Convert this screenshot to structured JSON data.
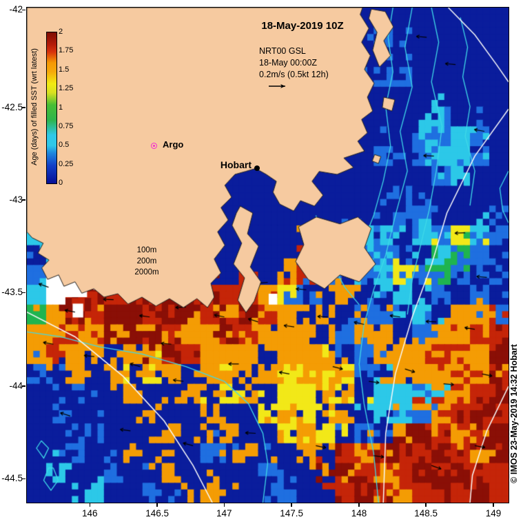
{
  "title": "18-May-2019 10Z",
  "legend": {
    "product": "NRT00 GSL",
    "datetime": "18-May 00:00Z",
    "scale": "0.2m/s (0.5kt 12h)"
  },
  "markers": {
    "argo": "Argo",
    "hobart": "Hobart"
  },
  "contour_labels": {
    "l1": "100m",
    "l2": "200m",
    "l3": "2000m"
  },
  "credit": "© IMOS 23-May-2019 14:32 Hobart",
  "colorbar": {
    "label": "Age (days) of filled SST (wrt latest)",
    "ticks": [
      "2",
      "1.75",
      "1.5",
      "1.25",
      "1",
      "0.75",
      "0.5",
      "0.25",
      "0"
    ],
    "stops": [
      [
        0,
        "#060f96"
      ],
      [
        0.12,
        "#1240c8"
      ],
      [
        0.2,
        "#1e86de"
      ],
      [
        0.25,
        "#2fc8e8"
      ],
      [
        0.32,
        "#2fc8e8"
      ],
      [
        0.42,
        "#2eb44c"
      ],
      [
        0.52,
        "#49be34"
      ],
      [
        0.6,
        "#d8e020"
      ],
      [
        0.66,
        "#f2ea12"
      ],
      [
        0.74,
        "#f6a90a"
      ],
      [
        0.8,
        "#f59804"
      ],
      [
        0.87,
        "#d8330c"
      ],
      [
        0.92,
        "#b51b08"
      ],
      [
        1,
        "#7e0d04"
      ]
    ]
  },
  "axes": {
    "x": [
      {
        "label": "146",
        "f": 0.132
      },
      {
        "label": "146.5",
        "f": 0.272
      },
      {
        "label": "147",
        "f": 0.411
      },
      {
        "label": "147.5",
        "f": 0.551
      },
      {
        "label": "148",
        "f": 0.691
      },
      {
        "label": "148.5",
        "f": 0.83
      },
      {
        "label": "149",
        "f": 0.97
      }
    ],
    "y": [
      {
        "label": "-42",
        "f": 0.006
      },
      {
        "label": "-42.5",
        "f": 0.203
      },
      {
        "label": "-43",
        "f": 0.39
      },
      {
        "label": "-43.5",
        "f": 0.577
      },
      {
        "label": "-44",
        "f": 0.766
      },
      {
        "label": "-44.5",
        "f": 0.953
      }
    ]
  },
  "map": {
    "seed": 20190518,
    "palette": {
      "N": "#0a1d9c",
      "B": "#1f6fe0",
      "C": "#2cc8e8",
      "G": "#1fb450",
      "Y": "#f2e818",
      "O": "#f49c04",
      "R": "#c52508",
      "D": "#8a0f06",
      "W": "#ffffff"
    },
    "land_color": "#f6caa0",
    "coast_color": "#222222",
    "contour_cyan_color": "#3fd9e8",
    "contour_white_color": "#fafafa",
    "arrow_color": "#000000",
    "grid": [
      "NNNNNNNNNNNNNNNNNNNNNNNNN",
      "NNNNNNNNNNNNNNNNNNBNNNNNN",
      "NNNNNNNNNNNNNNNNNNNNNNNNN",
      "NNNNNNNNNNNNNNNNNNBBNNNNN",
      "NNNNNNNNNNNNNNNNNNNNNNNNN",
      "NNNNNNNNNNNNNNNNNNNNNCNNN",
      "NNNNNNNNNNNNNNNNNNNNCBCBN",
      "NNNNNNNNNNNNNNNNNNBNBCCBN",
      "NNNNNNNNNNNNNNNNNNNNNBCNN",
      "NNNNNNNNNNNNNNNNNNNBNNNNN",
      "NNNNNNNNNNNNNNNNNNNBBNNNN",
      "CBNNNNNNNNNNNNNOBCBNCBYCB",
      "NCWWNNNNNNNNNNNYCBCBNCGBN",
      "BWWRDNNNNNNNNORBNBCYBGBNB",
      "CWRDRRDDRDRROYBNONNCNBNBN",
      "GODRDDRDDRODRONONBBNCNOOB",
      "OOROODDROODROOONBOONBOORR",
      "OROONOODROOONOOONBOOOROOD",
      "BNONONYONOONOYOYOBNOOOROR",
      "NNBNNONNONYONYYOYNCCCRORD",
      "NBNNNNONNONNYOYNONCCBORDR",
      "NNNBNNNONNONNYOYNBNODRORD",
      "NNBNNONNNBNONNONRORDRDROD",
      "NCNNBNNONNNNBNNODRORDRDRR",
      "NNNCNNBNNONNNBNNRDRORDRDR"
    ],
    "land": [
      [
        [
          0,
          0
        ],
        [
          0.697,
          0
        ],
        [
          0.692,
          0.014
        ],
        [
          0.71,
          0.042
        ],
        [
          0.695,
          0.07
        ],
        [
          0.713,
          0.097
        ],
        [
          0.701,
          0.125
        ],
        [
          0.721,
          0.153
        ],
        [
          0.707,
          0.181
        ],
        [
          0.718,
          0.209
        ],
        [
          0.695,
          0.226
        ],
        [
          0.707,
          0.253
        ],
        [
          0.687,
          0.27
        ],
        [
          0.701,
          0.29
        ],
        [
          0.658,
          0.304
        ],
        [
          0.678,
          0.323
        ],
        [
          0.644,
          0.337
        ],
        [
          0.607,
          0.331
        ],
        [
          0.592,
          0.351
        ],
        [
          0.615,
          0.379
        ],
        [
          0.597,
          0.401
        ],
        [
          0.568,
          0.39
        ],
        [
          0.554,
          0.411
        ],
        [
          0.525,
          0.397
        ],
        [
          0.511,
          0.373
        ],
        [
          0.518,
          0.351
        ],
        [
          0.497,
          0.337
        ],
        [
          0.475,
          0.325
        ],
        [
          0.454,
          0.331
        ],
        [
          0.432,
          0.337
        ],
        [
          0.411,
          0.359
        ],
        [
          0.425,
          0.383
        ],
        [
          0.403,
          0.404
        ],
        [
          0.418,
          0.429
        ],
        [
          0.396,
          0.453
        ],
        [
          0.411,
          0.48
        ],
        [
          0.389,
          0.508
        ],
        [
          0.403,
          0.536
        ],
        [
          0.382,
          0.557
        ],
        [
          0.389,
          0.585
        ],
        [
          0.375,
          0.606
        ],
        [
          0.353,
          0.588
        ],
        [
          0.325,
          0.606
        ],
        [
          0.296,
          0.588
        ],
        [
          0.268,
          0.603
        ],
        [
          0.239,
          0.585
        ],
        [
          0.21,
          0.599
        ],
        [
          0.189,
          0.578
        ],
        [
          0.16,
          0.585
        ],
        [
          0.139,
          0.568
        ],
        [
          0.114,
          0.577
        ],
        [
          0.1,
          0.554
        ],
        [
          0.077,
          0.563
        ],
        [
          0.066,
          0.54
        ],
        [
          0.043,
          0.549
        ],
        [
          0.031,
          0.526
        ],
        [
          0.046,
          0.51
        ],
        [
          0.023,
          0.496
        ],
        [
          0.034,
          0.476
        ],
        [
          0.011,
          0.465
        ],
        [
          0,
          0.453
        ]
      ],
      [
        [
          0.443,
          0.401
        ],
        [
          0.469,
          0.415
        ],
        [
          0.458,
          0.457
        ],
        [
          0.481,
          0.482
        ],
        [
          0.464,
          0.524
        ],
        [
          0.486,
          0.554
        ],
        [
          0.472,
          0.593
        ],
        [
          0.455,
          0.616
        ],
        [
          0.438,
          0.591
        ],
        [
          0.452,
          0.546
        ],
        [
          0.429,
          0.518
        ],
        [
          0.446,
          0.476
        ],
        [
          0.426,
          0.44
        ],
        [
          0.435,
          0.415
        ]
      ],
      [
        [
          0.564,
          0.443
        ],
        [
          0.601,
          0.423
        ],
        [
          0.65,
          0.437
        ],
        [
          0.687,
          0.423
        ],
        [
          0.715,
          0.446
        ],
        [
          0.701,
          0.485
        ],
        [
          0.724,
          0.518
        ],
        [
          0.69,
          0.554
        ],
        [
          0.65,
          0.54
        ],
        [
          0.618,
          0.568
        ],
        [
          0.584,
          0.549
        ],
        [
          0.558,
          0.513
        ],
        [
          0.575,
          0.479
        ]
      ],
      [
        [
          0.715,
          0.003
        ],
        [
          0.744,
          0.008
        ],
        [
          0.761,
          0.039
        ],
        [
          0.741,
          0.067
        ],
        [
          0.755,
          0.097
        ],
        [
          0.732,
          0.12
        ],
        [
          0.718,
          0.086
        ],
        [
          0.727,
          0.05
        ],
        [
          0.71,
          0.022
        ]
      ],
      [
        [
          0.741,
          0.181
        ],
        [
          0.764,
          0.186
        ],
        [
          0.758,
          0.209
        ],
        [
          0.738,
          0.202
        ]
      ],
      [
        [
          0.722,
          0.297
        ],
        [
          0.735,
          0.301
        ],
        [
          0.73,
          0.315
        ],
        [
          0.717,
          0.31
        ]
      ]
    ],
    "white_patches": [
      [
        0.075,
        0.5,
        0.05,
        0.085
      ],
      [
        0.138,
        0.525,
        0.028,
        0.045
      ],
      [
        0.095,
        0.598,
        0.022,
        0.028
      ],
      [
        0.502,
        0.578,
        0.018,
        0.022
      ]
    ],
    "contours": {
      "cyan": [
        [
          [
            0.8,
            0.0
          ],
          [
            0.785,
            0.08
          ],
          [
            0.8,
            0.16
          ],
          [
            0.775,
            0.25
          ],
          [
            0.79,
            0.33
          ],
          [
            0.765,
            0.42
          ],
          [
            0.745,
            0.5
          ],
          [
            0.72,
            0.57
          ],
          [
            0.7,
            0.64
          ],
          [
            0.69,
            0.72
          ],
          [
            0.7,
            0.8
          ],
          [
            0.72,
            0.9
          ],
          [
            0.73,
            1.0
          ]
        ],
        [
          [
            0.84,
            0.0
          ],
          [
            0.855,
            0.07
          ],
          [
            0.84,
            0.15
          ],
          [
            0.862,
            0.24
          ],
          [
            0.85,
            0.33
          ],
          [
            0.835,
            0.41
          ],
          [
            0.82,
            0.47
          ],
          [
            0.8,
            0.55
          ],
          [
            0.79,
            0.62
          ]
        ],
        [
          [
            0.76,
            0.0
          ],
          [
            0.75,
            0.06
          ],
          [
            0.76,
            0.13
          ],
          [
            0.745,
            0.2
          ],
          [
            0.755,
            0.28
          ],
          [
            0.74,
            0.35
          ],
          [
            0.72,
            0.42
          ],
          [
            0.7,
            0.47
          ]
        ],
        [
          [
            0.0,
            0.655
          ],
          [
            0.07,
            0.665
          ],
          [
            0.15,
            0.685
          ],
          [
            0.24,
            0.7
          ],
          [
            0.33,
            0.725
          ],
          [
            0.41,
            0.755
          ],
          [
            0.46,
            0.8
          ],
          [
            0.49,
            0.86
          ],
          [
            0.5,
            0.92
          ],
          [
            0.49,
            1.0
          ]
        ],
        [
          [
            0.9,
            0.02
          ],
          [
            0.915,
            0.08
          ],
          [
            0.905,
            0.14
          ],
          [
            0.92,
            0.2
          ],
          [
            0.91,
            0.26
          ],
          [
            0.93,
            0.33
          ],
          [
            0.92,
            0.4
          ]
        ],
        [
          [
            1.0,
            0.33
          ],
          [
            0.982,
            0.365
          ],
          [
            0.988,
            0.41
          ],
          [
            1.0,
            0.435
          ]
        ],
        [
          [
            0.6,
            0.42
          ],
          [
            0.617,
            0.465
          ],
          [
            0.635,
            0.52
          ],
          [
            0.66,
            0.565
          ],
          [
            0.69,
            0.6
          ]
        ],
        [
          [
            0.055,
            0.93
          ],
          [
            0.065,
            0.955
          ],
          [
            0.05,
            0.975
          ],
          [
            0.035,
            0.955
          ],
          [
            0.045,
            0.93
          ],
          [
            0.055,
            0.93
          ]
        ],
        [
          [
            0.03,
            0.875
          ],
          [
            0.045,
            0.89
          ],
          [
            0.035,
            0.91
          ],
          [
            0.02,
            0.89
          ],
          [
            0.03,
            0.875
          ]
        ]
      ],
      "white": [
        [
          [
            0.0,
            0.615
          ],
          [
            0.1,
            0.665
          ],
          [
            0.2,
            0.745
          ],
          [
            0.285,
            0.835
          ],
          [
            0.345,
            0.925
          ],
          [
            0.385,
            1.0
          ]
        ],
        [
          [
            1.0,
            0.205
          ],
          [
            0.93,
            0.3
          ],
          [
            0.872,
            0.415
          ],
          [
            0.84,
            0.52
          ],
          [
            0.8,
            0.625
          ],
          [
            0.765,
            0.74
          ],
          [
            0.745,
            0.86
          ],
          [
            0.74,
            1.0
          ]
        ],
        [
          [
            0.875,
            0.0
          ],
          [
            0.93,
            0.055
          ],
          [
            0.975,
            0.115
          ],
          [
            1.0,
            0.15
          ]
        ],
        [
          [
            1.0,
            0.765
          ],
          [
            0.955,
            0.855
          ],
          [
            0.925,
            0.945
          ],
          [
            0.92,
            1.0
          ]
        ]
      ]
    },
    "arrows": [
      [
        0.06,
        0.475,
        195
      ],
      [
        0.13,
        0.52,
        185
      ],
      [
        0.045,
        0.565,
        200
      ],
      [
        0.1,
        0.615,
        190
      ],
      [
        0.18,
        0.59,
        182
      ],
      [
        0.255,
        0.625,
        188
      ],
      [
        0.33,
        0.605,
        178
      ],
      [
        0.41,
        0.625,
        192
      ],
      [
        0.48,
        0.635,
        198
      ],
      [
        0.555,
        0.645,
        188
      ],
      [
        0.625,
        0.625,
        183
      ],
      [
        0.7,
        0.64,
        193
      ],
      [
        0.775,
        0.625,
        188
      ],
      [
        0.85,
        0.635,
        183
      ],
      [
        0.93,
        0.65,
        190
      ],
      [
        0.14,
        0.705,
        186
      ],
      [
        0.235,
        0.725,
        196
      ],
      [
        0.325,
        0.755,
        188
      ],
      [
        0.44,
        0.72,
        180
      ],
      [
        0.545,
        0.74,
        190
      ],
      [
        0.635,
        0.725,
        15
      ],
      [
        0.71,
        0.755,
        8
      ],
      [
        0.785,
        0.73,
        18
      ],
      [
        0.865,
        0.76,
        5
      ],
      [
        0.945,
        0.74,
        12
      ],
      [
        0.09,
        0.825,
        198
      ],
      [
        0.215,
        0.855,
        188
      ],
      [
        0.345,
        0.885,
        195
      ],
      [
        0.475,
        0.86,
        183
      ],
      [
        0.6,
        0.885,
        12
      ],
      [
        0.72,
        0.905,
        8
      ],
      [
        0.84,
        0.925,
        20
      ],
      [
        0.93,
        0.885,
        10
      ],
      [
        0.89,
        0.115,
        185
      ],
      [
        0.95,
        0.25,
        190
      ],
      [
        0.845,
        0.3,
        183
      ],
      [
        0.91,
        0.455,
        178
      ],
      [
        0.7,
        0.5,
        188
      ],
      [
        0.62,
        0.455,
        185
      ],
      [
        0.055,
        0.68,
        190
      ],
      [
        0.3,
        0.68,
        185
      ],
      [
        0.5,
        0.555,
        175
      ],
      [
        0.58,
        0.57,
        185
      ],
      [
        0.83,
        0.06,
        185
      ],
      [
        0.955,
        0.545,
        185
      ]
    ]
  }
}
